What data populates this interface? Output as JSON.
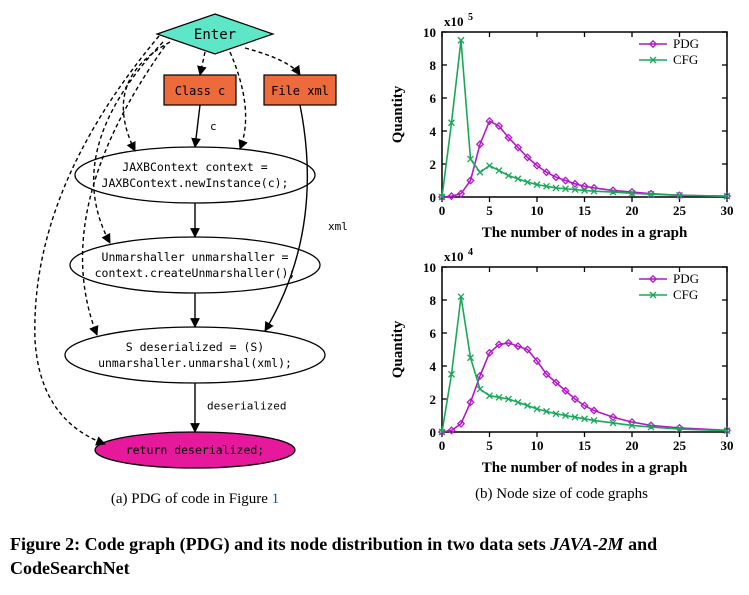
{
  "panel_a": {
    "caption_prefix": "(a) PDG of code in Figure ",
    "figref": "1",
    "diagram": {
      "enter": {
        "label": "Enter",
        "fill": "#5de6c8",
        "stroke": "#000000"
      },
      "class_c": {
        "label": "Class c",
        "fill": "#ed6a3b",
        "stroke": "#000000"
      },
      "file_xml": {
        "label": "File xml",
        "fill": "#ed6a3b",
        "stroke": "#000000"
      },
      "node1_l1": "JAXBContext context =",
      "node1_l2": "JAXBContext.newInstance(c);",
      "node2_l1": "Unmarshaller unmarshaller =",
      "node2_l2": "context.createUnmarshaller();",
      "node3_l1": "S deserialized = (S)",
      "node3_l2": "unmarshaller.unmarshal(xml);",
      "return": {
        "label": "return deserialized;",
        "fill": "#e6189c",
        "stroke": "#000000"
      },
      "edge_c": "c",
      "edge_xml": "xml",
      "edge_deser": "deserialized",
      "ellipse_fill": "#ffffff",
      "ellipse_stroke": "#000000",
      "text_color": "#000000"
    }
  },
  "panel_b": {
    "caption": "(b) Node size of code graphs",
    "chart_top": {
      "type": "line",
      "xlabel": "The number of nodes in a graph",
      "ylabel": "Quantity",
      "yexp": "x10",
      "yexp_sup": "5",
      "xlim": [
        0,
        30
      ],
      "xtick_step": 5,
      "ylim": [
        0,
        10
      ],
      "ytick_step": 2,
      "legend": {
        "pdg": "PDG",
        "cfg": "CFG"
      },
      "colors": {
        "pdg": "#b217c9",
        "cfg": "#18a858",
        "axis": "#000000",
        "grid": "#000000"
      },
      "markers": {
        "pdg": "diamond",
        "cfg": "x"
      },
      "series": {
        "pdg_x": [
          0,
          1,
          2,
          3,
          4,
          5,
          6,
          7,
          8,
          9,
          10,
          11,
          12,
          13,
          14,
          15,
          16,
          18,
          20,
          22,
          25,
          30
        ],
        "pdg_y": [
          0,
          0.05,
          0.2,
          1.0,
          3.2,
          4.6,
          4.3,
          3.6,
          3.0,
          2.4,
          1.9,
          1.5,
          1.2,
          1.0,
          0.8,
          0.65,
          0.55,
          0.4,
          0.3,
          0.2,
          0.1,
          0.05
        ],
        "cfg_x": [
          0,
          1,
          2,
          3,
          4,
          5,
          6,
          7,
          8,
          9,
          10,
          11,
          12,
          13,
          14,
          15,
          16,
          18,
          20,
          22,
          25,
          30
        ],
        "cfg_y": [
          0,
          4.5,
          9.5,
          2.3,
          1.5,
          1.9,
          1.6,
          1.3,
          1.1,
          0.9,
          0.75,
          0.65,
          0.55,
          0.5,
          0.45,
          0.4,
          0.35,
          0.3,
          0.22,
          0.17,
          0.1,
          0.05
        ]
      }
    },
    "chart_bottom": {
      "type": "line",
      "xlabel": "The number of nodes in a graph",
      "ylabel": "Quantity",
      "yexp": "x10",
      "yexp_sup": "4",
      "xlim": [
        0,
        30
      ],
      "xtick_step": 5,
      "ylim": [
        0,
        10
      ],
      "ytick_step": 2,
      "legend": {
        "pdg": "PDG",
        "cfg": "CFG"
      },
      "colors": {
        "pdg": "#b217c9",
        "cfg": "#18a858",
        "axis": "#000000",
        "grid": "#000000"
      },
      "markers": {
        "pdg": "diamond",
        "cfg": "x"
      },
      "series": {
        "pdg_x": [
          0,
          1,
          2,
          3,
          4,
          5,
          6,
          7,
          8,
          9,
          10,
          11,
          12,
          13,
          14,
          15,
          16,
          18,
          20,
          22,
          25,
          30
        ],
        "pdg_y": [
          0,
          0.1,
          0.5,
          1.8,
          3.4,
          4.8,
          5.3,
          5.4,
          5.2,
          5.0,
          4.3,
          3.5,
          3.0,
          2.5,
          2.0,
          1.6,
          1.3,
          0.9,
          0.6,
          0.4,
          0.25,
          0.1
        ],
        "cfg_x": [
          0,
          1,
          2,
          3,
          4,
          5,
          6,
          7,
          8,
          9,
          10,
          11,
          12,
          13,
          14,
          15,
          16,
          18,
          20,
          22,
          25,
          30
        ],
        "cfg_y": [
          0,
          3.5,
          8.2,
          4.5,
          2.6,
          2.2,
          2.1,
          2.0,
          1.8,
          1.6,
          1.4,
          1.25,
          1.1,
          1.0,
          0.9,
          0.8,
          0.7,
          0.55,
          0.4,
          0.3,
          0.18,
          0.08
        ]
      }
    }
  },
  "main_caption": {
    "prefix": "Figure 2: Code graph (PDG) and its node distribution in two data sets ",
    "ital": "JAVA-2M",
    "mid": " and CodeSearchNet"
  }
}
